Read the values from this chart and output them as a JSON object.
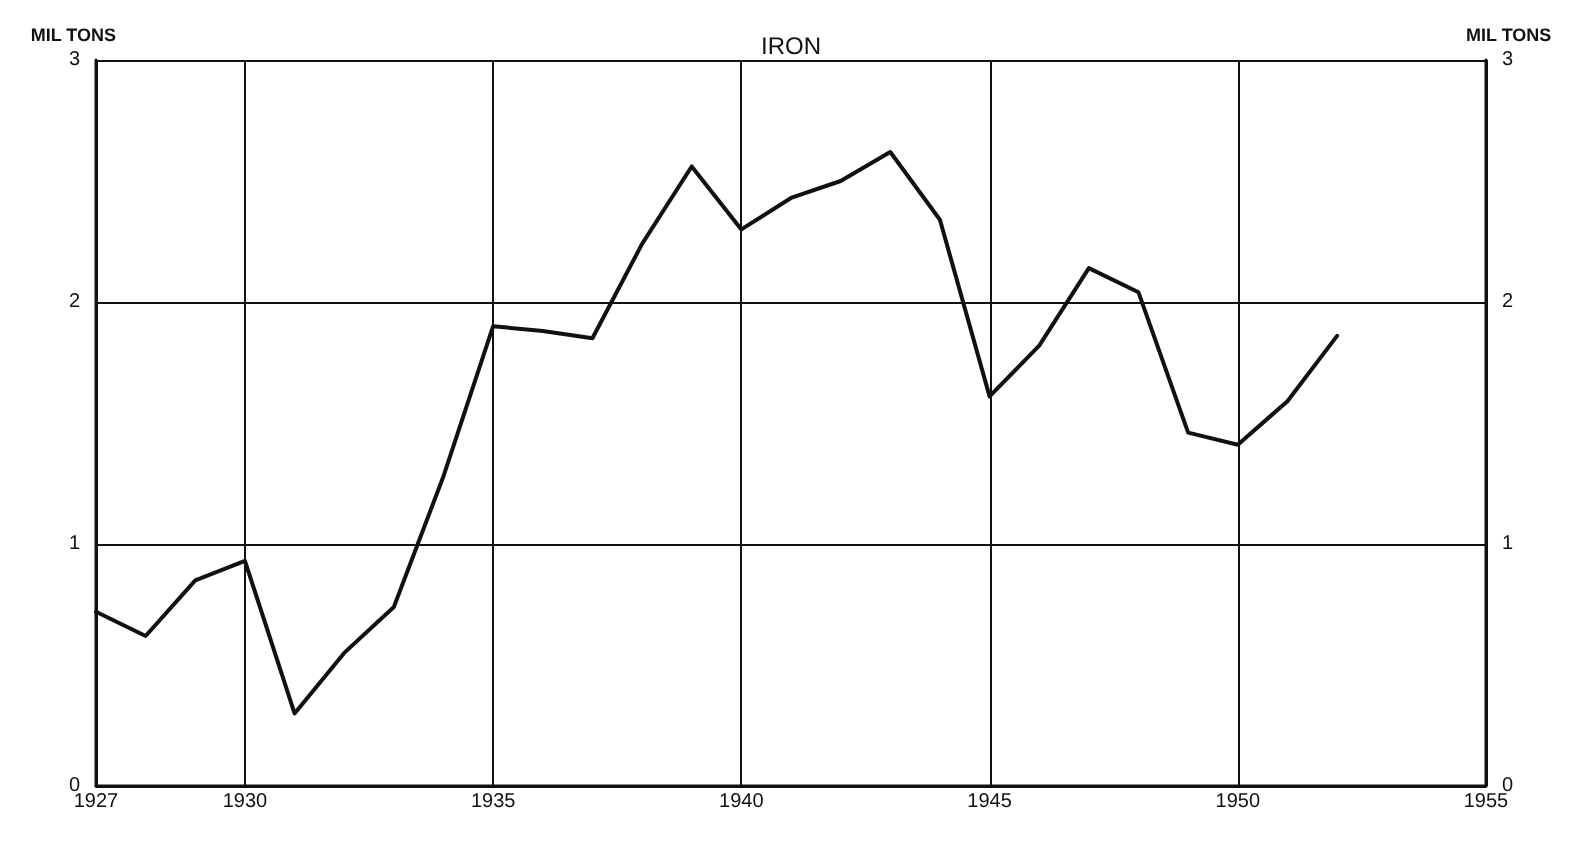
{
  "chart_data": {
    "type": "line",
    "title": "IRON",
    "ylabel": "MIL TONS",
    "y2label": "MIL TONS",
    "x": [
      1927,
      1928,
      1929,
      1930,
      1931,
      1932,
      1933,
      1934,
      1935,
      1936,
      1937,
      1938,
      1939,
      1940,
      1941,
      1942,
      1943,
      1944,
      1945,
      1946,
      1947,
      1948,
      1949,
      1950,
      1951,
      1952
    ],
    "series": [
      {
        "color": "#111111",
        "values": [
          0.72,
          0.62,
          0.85,
          0.93,
          0.3,
          0.55,
          0.74,
          1.28,
          1.9,
          1.88,
          1.85,
          2.24,
          2.56,
          2.3,
          2.43,
          2.5,
          2.62,
          2.34,
          1.61,
          1.82,
          2.14,
          2.04,
          1.46,
          1.41,
          1.59,
          1.86
        ]
      }
    ],
    "xlim": [
      1927,
      1955
    ],
    "xticks": [
      1927,
      1930,
      1935,
      1940,
      1945,
      1950,
      1955
    ],
    "ylim": [
      0,
      3
    ],
    "yticks": [
      0,
      1,
      2,
      3
    ],
    "y2lim": [
      0,
      3
    ],
    "y2ticks": [
      0,
      1,
      2,
      3
    ],
    "grid": true,
    "marker": "none",
    "line_style": "solid"
  }
}
